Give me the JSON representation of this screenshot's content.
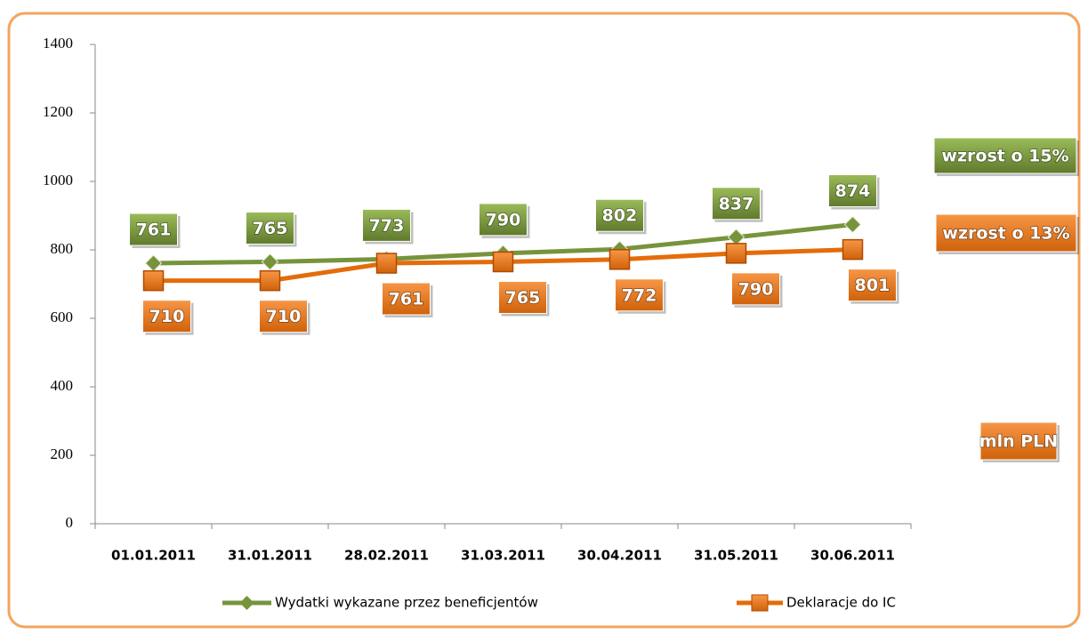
{
  "chart_data": {
    "type": "line",
    "categories": [
      "01.01.2011",
      "31.01.2011",
      "28.02.2011",
      "31.03.2011",
      "30.04.2011",
      "31.05.2011",
      "30.06.2011"
    ],
    "series": [
      {
        "name": "Wydatki wykazane przez beneficjentów",
        "color": "#77933c",
        "values": [
          761,
          765,
          773,
          790,
          802,
          837,
          874
        ]
      },
      {
        "name": "Deklaracje do IC",
        "color": "#e46c0a",
        "values": [
          710,
          710,
          761,
          765,
          772,
          790,
          801
        ]
      }
    ],
    "ylim": [
      0,
      1400
    ],
    "yticks": [
      0,
      200,
      400,
      600,
      800,
      1000,
      1200,
      1400
    ],
    "annotations": [
      {
        "text": "wzrost o 15%",
        "color": "#77933c"
      },
      {
        "text": "wzrost o 13%",
        "color": "#e46c0a"
      },
      {
        "text": "mln PLN",
        "color": "#e46c0a"
      }
    ],
    "legend": "bottom"
  }
}
